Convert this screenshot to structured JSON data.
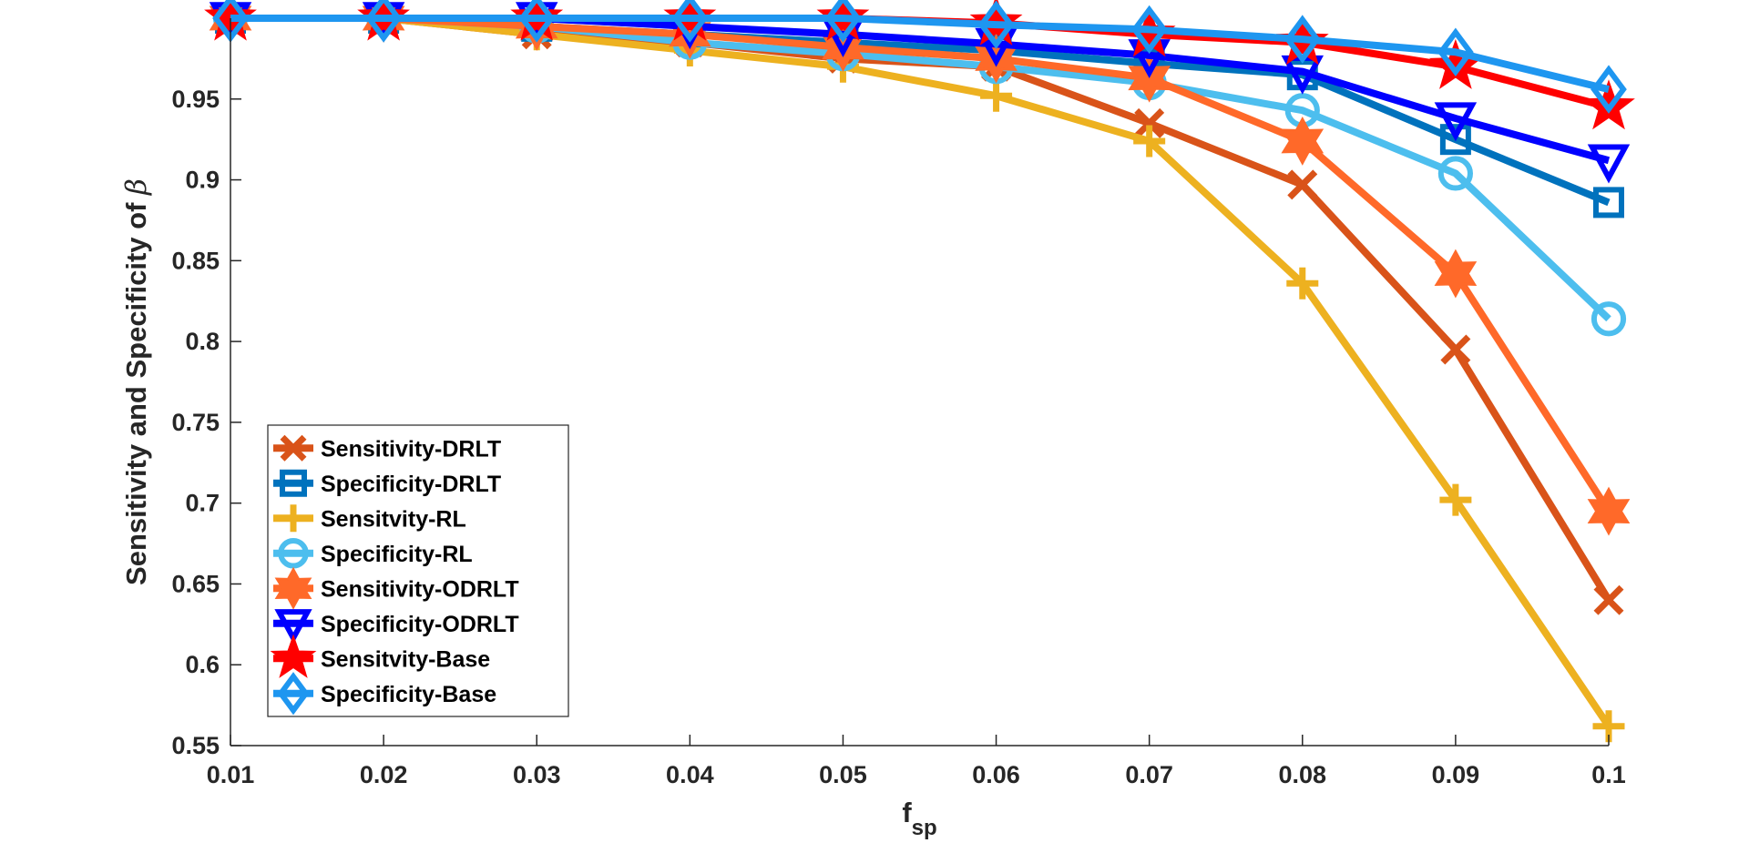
{
  "chart_data": {
    "type": "line",
    "x": [
      0.01,
      0.02,
      0.03,
      0.04,
      0.05,
      0.06,
      0.07,
      0.08,
      0.09,
      0.1
    ],
    "x_tick_labels": [
      "0.01",
      "0.02",
      "0.03",
      "0.04",
      "0.05",
      "0.06",
      "0.07",
      "0.08",
      "0.09",
      "0.1"
    ],
    "y_ticks": [
      0.55,
      0.6,
      0.65,
      0.7,
      0.75,
      0.8,
      0.85,
      0.9,
      0.95
    ],
    "y_tick_labels": [
      "0.55",
      "0.6",
      "0.65",
      "0.7",
      "0.75",
      "0.8",
      "0.85",
      "0.9",
      "0.95"
    ],
    "xlim": [
      0.01,
      0.1
    ],
    "ylim": [
      0.55,
      1.0
    ],
    "xlabel_main": "f",
    "xlabel_sub": "sp",
    "ylabel": "Sensitivity and Specificity of ",
    "ylabel_symbol": "β",
    "grid": false,
    "legend_position": "lower-left",
    "series": [
      {
        "name": "Sensitivity-DRLT",
        "color": "#D95319",
        "marker": "x",
        "values": [
          1.0,
          1.0,
          0.99,
          0.985,
          0.975,
          0.97,
          0.935,
          0.897,
          0.795,
          0.64
        ]
      },
      {
        "name": "Specificity-DRLT",
        "color": "#0072BD",
        "marker": "square",
        "values": [
          1.0,
          1.0,
          0.995,
          0.99,
          0.985,
          0.98,
          0.972,
          0.965,
          0.925,
          0.886
        ]
      },
      {
        "name": "Sensitvity-RL",
        "color": "#EDB120",
        "marker": "plus",
        "values": [
          1.0,
          1.0,
          0.99,
          0.98,
          0.97,
          0.952,
          0.924,
          0.836,
          0.702,
          0.562
        ]
      },
      {
        "name": "Specificity-RL",
        "color": "#4DBEEE",
        "marker": "circle",
        "values": [
          1.0,
          1.0,
          0.995,
          0.985,
          0.978,
          0.97,
          0.96,
          0.943,
          0.904,
          0.814
        ]
      },
      {
        "name": "Sensitivity-ODRLT",
        "color": "#FF6929",
        "marker": "hexagram",
        "values": [
          1.0,
          1.0,
          0.995,
          0.99,
          0.982,
          0.975,
          0.963,
          0.924,
          0.842,
          0.695
        ]
      },
      {
        "name": "Specificity-ODRLT",
        "color": "#0000FF",
        "marker": "triangle-down",
        "values": [
          1.0,
          1.0,
          1.0,
          0.995,
          0.99,
          0.984,
          0.977,
          0.967,
          0.938,
          0.912
        ]
      },
      {
        "name": "Sensitvity-Base",
        "color": "#FF0000",
        "marker": "pentagram",
        "values": [
          1.0,
          1.0,
          1.0,
          1.0,
          1.0,
          0.997,
          0.99,
          0.985,
          0.97,
          0.945
        ]
      },
      {
        "name": "Specificity-Base",
        "color": "#1E96F0",
        "marker": "diamond",
        "values": [
          1.0,
          1.0,
          1.0,
          1.0,
          1.0,
          0.996,
          0.993,
          0.987,
          0.979,
          0.956
        ]
      }
    ]
  }
}
